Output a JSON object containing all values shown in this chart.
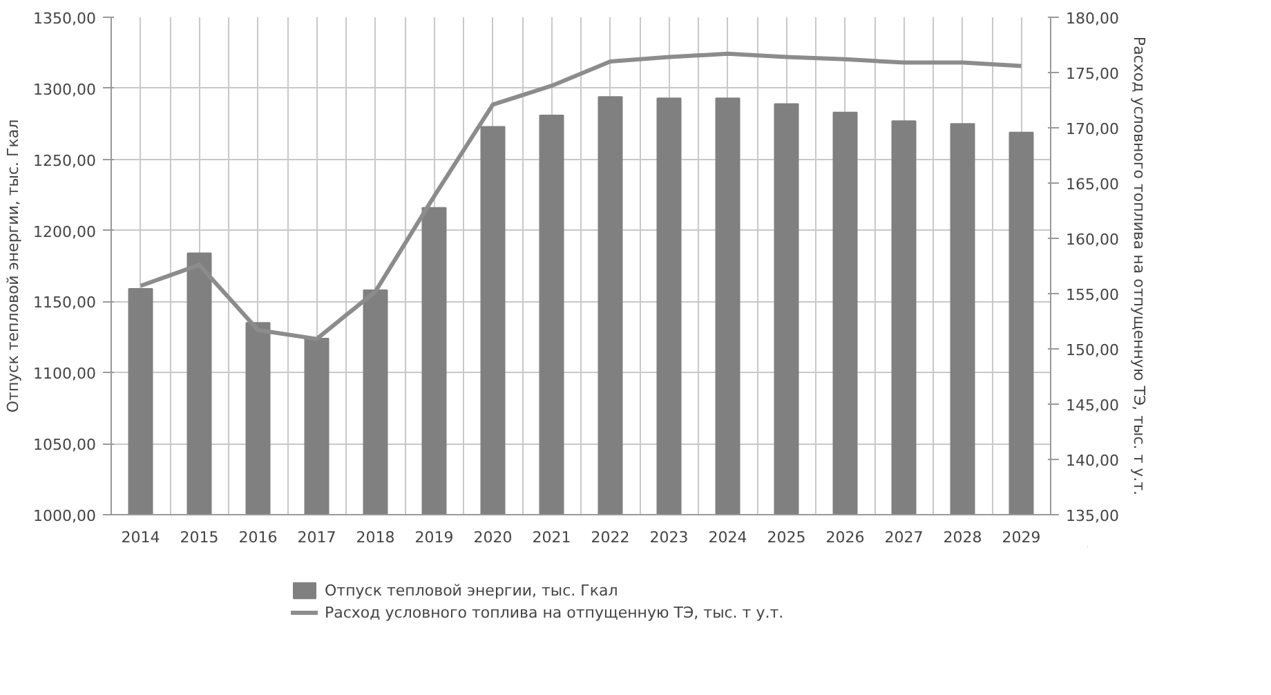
{
  "chart_data": {
    "type": "bar",
    "categories": [
      "2014",
      "2015",
      "2016",
      "2017",
      "2018",
      "2019",
      "2020",
      "2021",
      "2022",
      "2023",
      "2024",
      "2025",
      "2026",
      "2027",
      "2028",
      "2029"
    ],
    "series": [
      {
        "name": "Отпуск тепловой энергии, тыс. Гкал",
        "color": "#808080",
        "values": [
          1159,
          1184,
          1135,
          1124,
          1158,
          1216,
          1273,
          1281,
          1294,
          1293,
          1293,
          1289,
          1283,
          1277,
          1275,
          1269
        ]
      },
      {
        "name": "Расход условного топлива на отпущенную ТЭ, тыс. т у.т.",
        "color": "#8c8c8c",
        "type": "line",
        "axis": "y2",
        "values": [
          155.7,
          157.6,
          151.7,
          150.9,
          155.2,
          163.8,
          172.1,
          173.8,
          176.0,
          176.4,
          176.7,
          176.4,
          176.2,
          175.9,
          175.9,
          175.6
        ]
      }
    ],
    "ylabel": "Отпуск тепловой энергии, тыс. Гкал",
    "y2label": "Расход условного топлива на отпущенную ТЭ, тыс. т у.т.",
    "ylim": [
      1000,
      1350
    ],
    "yticks": [
      {
        "value": 1000,
        "label": "1000,00"
      },
      {
        "value": 1050,
        "label": "1050,00"
      },
      {
        "value": 1100,
        "label": "1100,00"
      },
      {
        "value": 1150,
        "label": "1150,00"
      },
      {
        "value": 1200,
        "label": "1200,00"
      },
      {
        "value": 1250,
        "label": "1250,00"
      },
      {
        "value": 1300,
        "label": "1300,00"
      },
      {
        "value": 1350,
        "label": "1350,00"
      }
    ],
    "y2lim": [
      135,
      180
    ],
    "y2ticks": [
      {
        "value": 135,
        "label": "135,00"
      },
      {
        "value": 140,
        "label": "140,00"
      },
      {
        "value": 145,
        "label": "145,00"
      },
      {
        "value": 150,
        "label": "150,00"
      },
      {
        "value": 155,
        "label": "155,00"
      },
      {
        "value": 160,
        "label": "160,00"
      },
      {
        "value": 165,
        "label": "165,00"
      },
      {
        "value": 170,
        "label": "170,00"
      },
      {
        "value": 175,
        "label": "175,00"
      },
      {
        "value": 180,
        "label": "180,00"
      }
    ],
    "grid": true,
    "legend": "bottom",
    "marker": "none",
    "line_style": "solid"
  }
}
